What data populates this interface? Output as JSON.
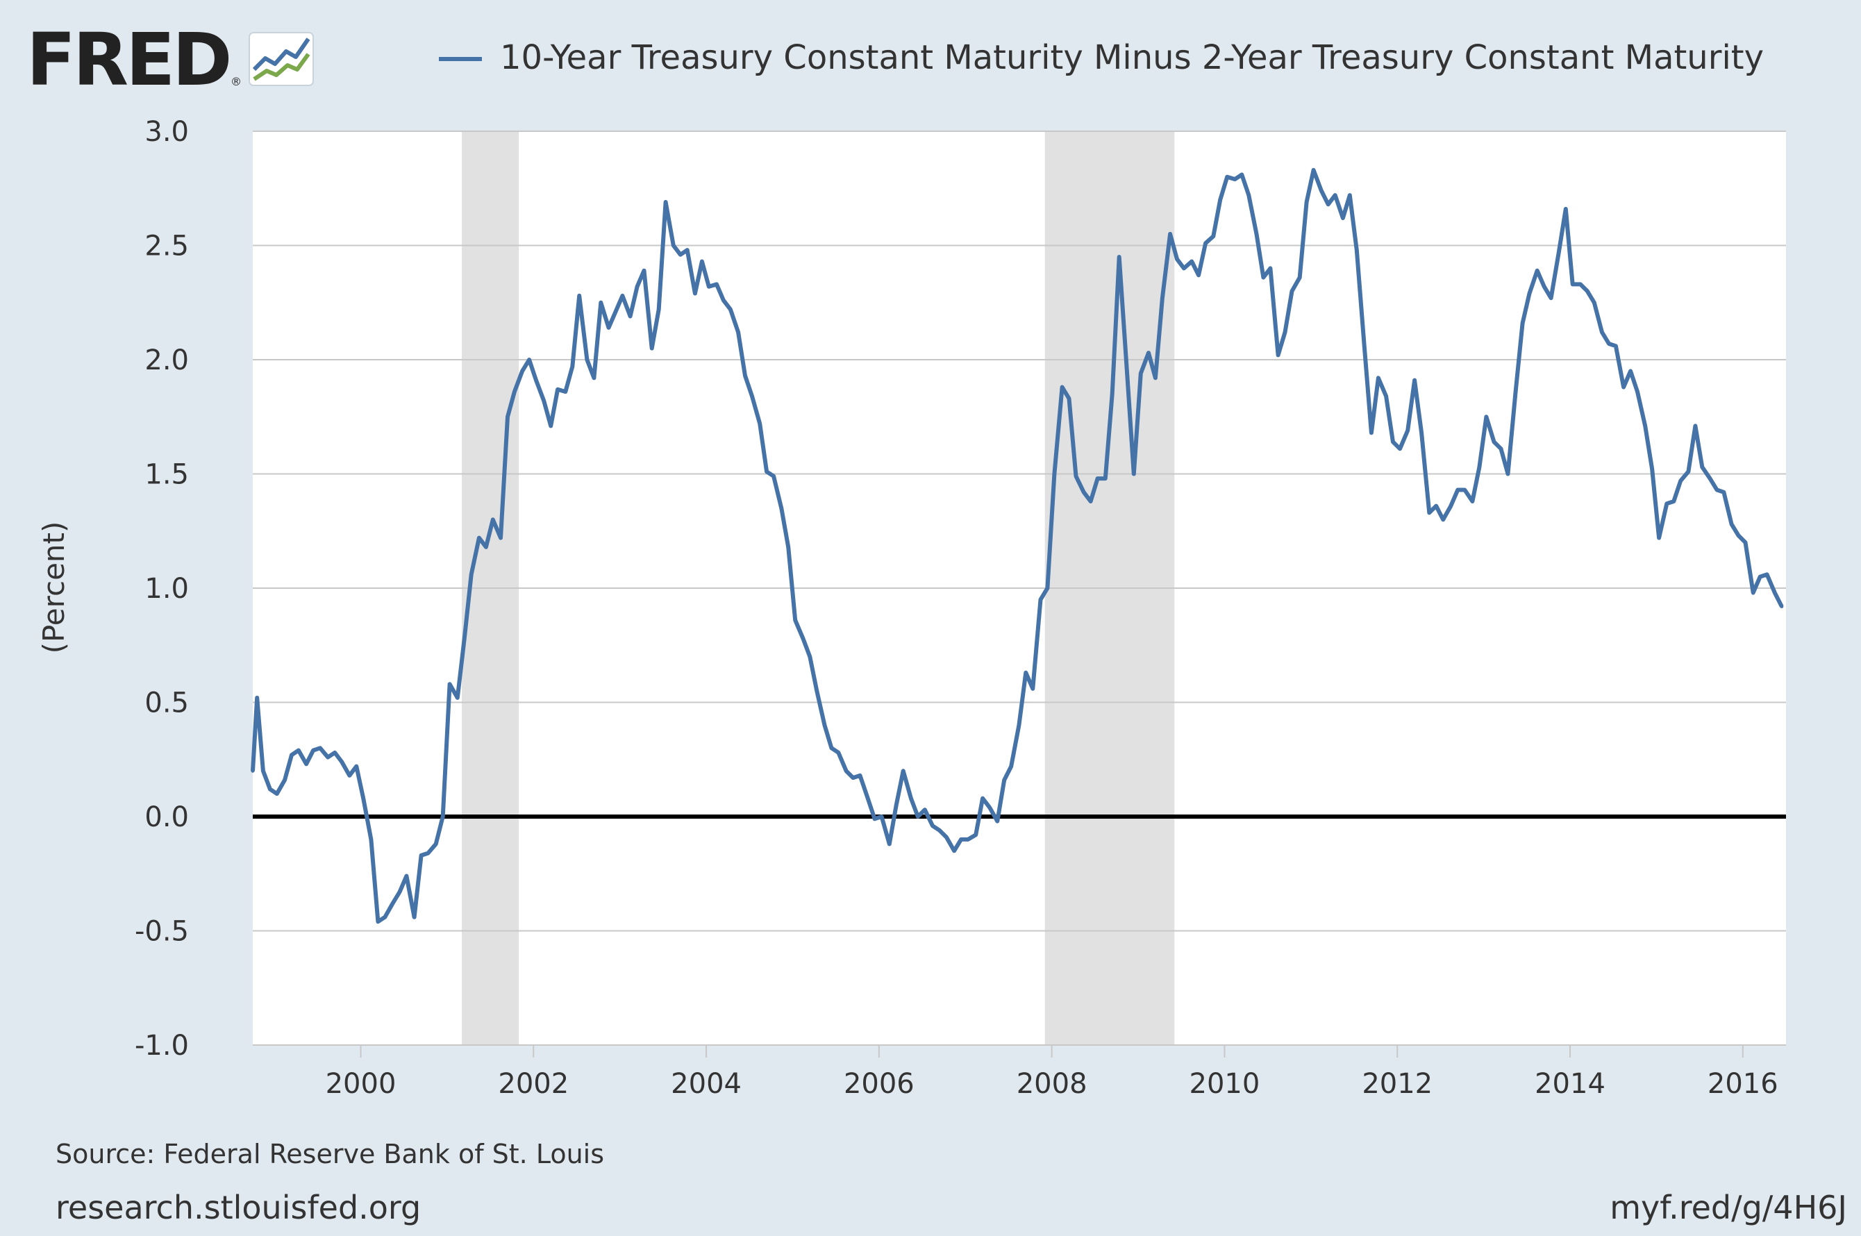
{
  "logo": {
    "text": "FRED",
    "reg": "®"
  },
  "colors": {
    "series": "#4572a7",
    "recession": "#e1e1e1",
    "background": "#e1e9f0",
    "plot": "#ffffff",
    "grid": "#c8c8c8",
    "zero_line": "#000000"
  },
  "footer": {
    "source": "Source: Federal Reserve Bank of St. Louis",
    "site": "research.stlouisfed.org",
    "short_url": "myf.red/g/4H6J"
  },
  "chart_data": {
    "type": "line",
    "title": "",
    "xlabel": "",
    "ylabel": "(Percent)",
    "xlim": [
      1998.75,
      2016.5
    ],
    "ylim": [
      -1.0,
      3.0
    ],
    "x_ticks": [
      2000,
      2002,
      2004,
      2006,
      2008,
      2010,
      2012,
      2014,
      2016
    ],
    "x_tick_labels": [
      "2000",
      "2002",
      "2004",
      "2006",
      "2008",
      "2010",
      "2012",
      "2014",
      "2016"
    ],
    "y_ticks": [
      -1.0,
      -0.5,
      0.0,
      0.5,
      1.0,
      1.5,
      2.0,
      2.5,
      3.0
    ],
    "y_tick_labels": [
      "-1.0",
      "-0.5",
      "0.0",
      "0.5",
      "1.0",
      "1.5",
      "2.0",
      "2.5",
      "3.0"
    ],
    "grid": true,
    "legend_position": "top",
    "zero_line": true,
    "recessions": [
      [
        2001.17,
        2001.83
      ],
      [
        2007.92,
        2009.42
      ]
    ],
    "series": [
      {
        "name": "10-Year Treasury Constant Maturity Minus 2-Year Treasury Constant Maturity",
        "x": [
          1998.75,
          1998.8,
          1998.87,
          1998.95,
          1999.03,
          1999.12,
          1999.2,
          1999.28,
          1999.37,
          1999.45,
          1999.53,
          1999.62,
          1999.7,
          1999.78,
          1999.87,
          1999.95,
          2000.03,
          2000.12,
          2000.2,
          2000.28,
          2000.37,
          2000.45,
          2000.53,
          2000.62,
          2000.7,
          2000.78,
          2000.87,
          2000.95,
          2001.03,
          2001.12,
          2001.2,
          2001.28,
          2001.37,
          2001.45,
          2001.53,
          2001.62,
          2001.7,
          2001.78,
          2001.87,
          2001.95,
          2002.03,
          2002.12,
          2002.2,
          2002.28,
          2002.37,
          2002.45,
          2002.53,
          2002.62,
          2002.7,
          2002.78,
          2002.87,
          2002.95,
          2003.03,
          2003.12,
          2003.2,
          2003.28,
          2003.37,
          2003.45,
          2003.53,
          2003.62,
          2003.7,
          2003.78,
          2003.87,
          2003.95,
          2004.03,
          2004.12,
          2004.2,
          2004.28,
          2004.37,
          2004.45,
          2004.53,
          2004.62,
          2004.7,
          2004.78,
          2004.87,
          2004.95,
          2005.03,
          2005.12,
          2005.2,
          2005.28,
          2005.37,
          2005.45,
          2005.53,
          2005.62,
          2005.7,
          2005.78,
          2005.87,
          2005.95,
          2006.03,
          2006.12,
          2006.2,
          2006.28,
          2006.37,
          2006.45,
          2006.53,
          2006.62,
          2006.7,
          2006.78,
          2006.87,
          2006.95,
          2007.03,
          2007.12,
          2007.2,
          2007.28,
          2007.37,
          2007.45,
          2007.53,
          2007.62,
          2007.7,
          2007.78,
          2007.87,
          2007.95,
          2008.03,
          2008.12,
          2008.2,
          2008.28,
          2008.37,
          2008.45,
          2008.53,
          2008.62,
          2008.7,
          2008.78,
          2008.87,
          2008.95,
          2009.03,
          2009.12,
          2009.2,
          2009.28,
          2009.37,
          2009.45,
          2009.53,
          2009.62,
          2009.7,
          2009.78,
          2009.87,
          2009.95,
          2010.03,
          2010.12,
          2010.2,
          2010.28,
          2010.37,
          2010.45,
          2010.53,
          2010.62,
          2010.7,
          2010.78,
          2010.87,
          2010.95,
          2011.03,
          2011.12,
          2011.2,
          2011.28,
          2011.37,
          2011.45,
          2011.53,
          2011.62,
          2011.7,
          2011.78,
          2011.87,
          2011.95,
          2012.03,
          2012.12,
          2012.2,
          2012.28,
          2012.37,
          2012.45,
          2012.53,
          2012.62,
          2012.7,
          2012.78,
          2012.87,
          2012.95,
          2013.03,
          2013.12,
          2013.2,
          2013.28,
          2013.37,
          2013.45,
          2013.53,
          2013.62,
          2013.7,
          2013.78,
          2013.87,
          2013.95,
          2014.03,
          2014.12,
          2014.2,
          2014.28,
          2014.37,
          2014.45,
          2014.53,
          2014.62,
          2014.7,
          2014.78,
          2014.87,
          2014.95,
          2015.03,
          2015.12,
          2015.2,
          2015.28,
          2015.37,
          2015.45,
          2015.53,
          2015.62,
          2015.7,
          2015.78,
          2015.87,
          2015.95,
          2016.03,
          2016.12,
          2016.2,
          2016.28,
          2016.37,
          2016.45
        ],
        "y": [
          0.2,
          0.52,
          0.2,
          0.12,
          0.1,
          0.16,
          0.27,
          0.29,
          0.23,
          0.29,
          0.3,
          0.26,
          0.28,
          0.24,
          0.18,
          0.22,
          0.08,
          -0.1,
          -0.46,
          -0.44,
          -0.38,
          -0.33,
          -0.26,
          -0.44,
          -0.17,
          -0.16,
          -0.12,
          0.0,
          0.58,
          0.52,
          0.78,
          1.06,
          1.22,
          1.18,
          1.3,
          1.22,
          1.75,
          1.86,
          1.95,
          2.0,
          1.91,
          1.82,
          1.71,
          1.87,
          1.86,
          1.97,
          2.28,
          2.0,
          1.92,
          2.25,
          2.14,
          2.21,
          2.28,
          2.19,
          2.32,
          2.39,
          2.05,
          2.22,
          2.69,
          2.5,
          2.46,
          2.48,
          2.29,
          2.43,
          2.32,
          2.33,
          2.26,
          2.22,
          2.12,
          1.93,
          1.84,
          1.72,
          1.51,
          1.49,
          1.35,
          1.18,
          0.86,
          0.78,
          0.7,
          0.55,
          0.4,
          0.3,
          0.28,
          0.2,
          0.17,
          0.18,
          0.08,
          -0.01,
          0.0,
          -0.12,
          0.05,
          0.2,
          0.08,
          0.0,
          0.03,
          -0.04,
          -0.06,
          -0.09,
          -0.15,
          -0.1,
          -0.1,
          -0.08,
          0.08,
          0.04,
          -0.02,
          0.16,
          0.22,
          0.4,
          0.63,
          0.56,
          0.95,
          1.0,
          1.5,
          1.88,
          1.83,
          1.49,
          1.42,
          1.38,
          1.48,
          1.48,
          1.85,
          2.45,
          1.95,
          1.5,
          1.94,
          2.03,
          1.92,
          2.27,
          2.55,
          2.44,
          2.4,
          2.43,
          2.37,
          2.51,
          2.54,
          2.7,
          2.8,
          2.79,
          2.81,
          2.72,
          2.55,
          2.36,
          2.4,
          2.02,
          2.12,
          2.3,
          2.36,
          2.69,
          2.83,
          2.74,
          2.68,
          2.72,
          2.62,
          2.72,
          2.48,
          2.05,
          1.68,
          1.92,
          1.84,
          1.64,
          1.61,
          1.69,
          1.91,
          1.68,
          1.33,
          1.36,
          1.3,
          1.36,
          1.43,
          1.43,
          1.38,
          1.53,
          1.75,
          1.64,
          1.61,
          1.5,
          1.86,
          2.16,
          2.29,
          2.39,
          2.32,
          2.27,
          2.47,
          2.66,
          2.33,
          2.33,
          2.3,
          2.25,
          2.12,
          2.07,
          2.06,
          1.88,
          1.95,
          1.86,
          1.71,
          1.52,
          1.22,
          1.37,
          1.38,
          1.47,
          1.51,
          1.71,
          1.53,
          1.48,
          1.43,
          1.42,
          1.28,
          1.23,
          1.2,
          0.98,
          1.05,
          1.06,
          0.98,
          0.92
        ]
      }
    ]
  }
}
